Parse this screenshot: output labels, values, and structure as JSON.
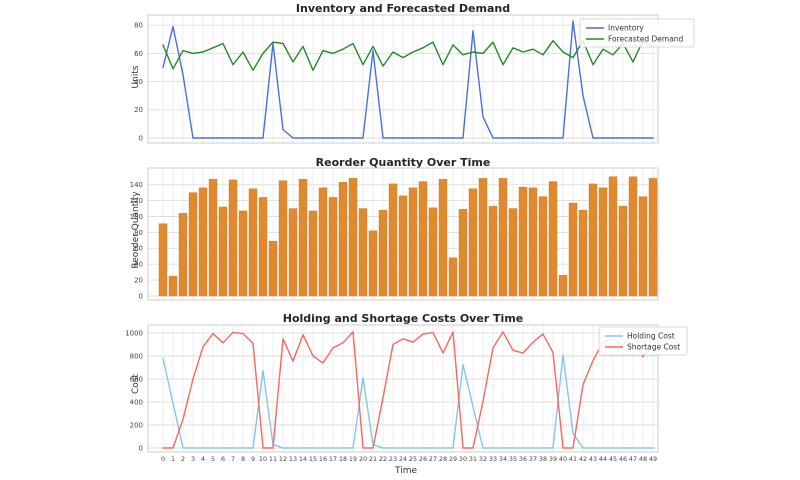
{
  "time_axis": {
    "label": "Time",
    "ticks": [
      0,
      1,
      2,
      3,
      4,
      5,
      6,
      7,
      8,
      9,
      10,
      11,
      12,
      13,
      14,
      15,
      16,
      17,
      18,
      19,
      20,
      21,
      22,
      23,
      24,
      25,
      26,
      27,
      28,
      29,
      30,
      31,
      32,
      33,
      34,
      35,
      36,
      37,
      38,
      39,
      40,
      41,
      42,
      43,
      44,
      45,
      46,
      47,
      48,
      49
    ]
  },
  "chart_data": [
    {
      "id": "inventory-demand-chart",
      "type": "line",
      "title": "Inventory and Forecasted Demand",
      "ylabel": "Units",
      "yticks": [
        0,
        20,
        40,
        60,
        80
      ],
      "ylim": [
        0,
        87
      ],
      "grid": true,
      "legend_position": "upper-right",
      "series": [
        {
          "name": "Inventory",
          "color": "#4a6fdc",
          "values": [
            50,
            79,
            45,
            0,
            0,
            0,
            0,
            0,
            0,
            0,
            0,
            67,
            6,
            0,
            0,
            0,
            0,
            0,
            0,
            0,
            0,
            62,
            0,
            0,
            0,
            0,
            0,
            0,
            0,
            0,
            0,
            76,
            15,
            0,
            0,
            0,
            0,
            0,
            0,
            0,
            0,
            83,
            30,
            0,
            0,
            0,
            0,
            0,
            0,
            0
          ]
        },
        {
          "name": "Forecasted Demand",
          "color": "#228b22",
          "values": [
            66,
            49,
            62,
            60,
            61,
            64,
            67,
            52,
            61,
            48,
            60,
            68,
            67,
            54,
            65,
            48,
            62,
            60,
            63,
            67,
            52,
            65,
            51,
            61,
            57,
            61,
            64,
            68,
            52,
            66,
            59,
            61,
            60,
            68,
            52,
            64,
            61,
            63,
            59,
            69,
            61,
            57,
            69,
            52,
            63,
            59,
            67,
            54,
            69,
            65
          ]
        }
      ]
    },
    {
      "id": "reorder-quantity-chart",
      "type": "bar",
      "title": "Reorder Quantity Over Time",
      "ylabel": "Reorder Quantity",
      "yticks": [
        0,
        20,
        40,
        60,
        80,
        100,
        120,
        140
      ],
      "ylim": [
        0,
        161
      ],
      "grid": true,
      "series": [
        {
          "name": "Reorder Quantity",
          "color": "#e0892f",
          "values": [
            91,
            25,
            104,
            130,
            136,
            147,
            112,
            146,
            107,
            135,
            124,
            69,
            145,
            110,
            147,
            107,
            136,
            124,
            143,
            148,
            110,
            82,
            108,
            141,
            126,
            136,
            144,
            111,
            147,
            48,
            109,
            135,
            148,
            113,
            148,
            110,
            137,
            136,
            125,
            144,
            26,
            117,
            108,
            141,
            136,
            150,
            113,
            150,
            125,
            148
          ]
        }
      ]
    },
    {
      "id": "holding-shortage-chart",
      "type": "line",
      "title": "Holding and Shortage Costs Over Time",
      "ylabel": "Cost",
      "xlabel": "Time",
      "yticks": [
        0,
        200,
        400,
        600,
        800,
        1000
      ],
      "ylim": [
        0,
        1070
      ],
      "grid": true,
      "legend_position": "upper-right",
      "series": [
        {
          "name": "Holding Cost",
          "color": "#85c5e8",
          "values": [
            780,
            390,
            0,
            0,
            0,
            0,
            0,
            0,
            0,
            0,
            675,
            30,
            0,
            0,
            0,
            0,
            0,
            0,
            0,
            0,
            610,
            30,
            0,
            0,
            0,
            0,
            0,
            0,
            0,
            0,
            725,
            360,
            0,
            0,
            0,
            0,
            0,
            0,
            0,
            0,
            810,
            130,
            0,
            0,
            0,
            0,
            0,
            0,
            0,
            0
          ]
        },
        {
          "name": "Shortage Cost",
          "color": "#f4695e",
          "values": [
            0,
            0,
            250,
            600,
            880,
            995,
            915,
            1005,
            995,
            910,
            0,
            0,
            950,
            755,
            985,
            800,
            740,
            870,
            915,
            1010,
            0,
            0,
            435,
            900,
            950,
            920,
            990,
            1005,
            825,
            1010,
            0,
            0,
            405,
            870,
            1010,
            850,
            825,
            920,
            990,
            830,
            0,
            0,
            550,
            760,
            920,
            950,
            890,
            1000,
            790,
            950
          ]
        }
      ]
    }
  ],
  "style": {
    "grid_color": "#e7e7e7",
    "frame_color": "#cccccc",
    "tick_label_color": "#444444",
    "legend_border_color": "#cfcfcf"
  }
}
